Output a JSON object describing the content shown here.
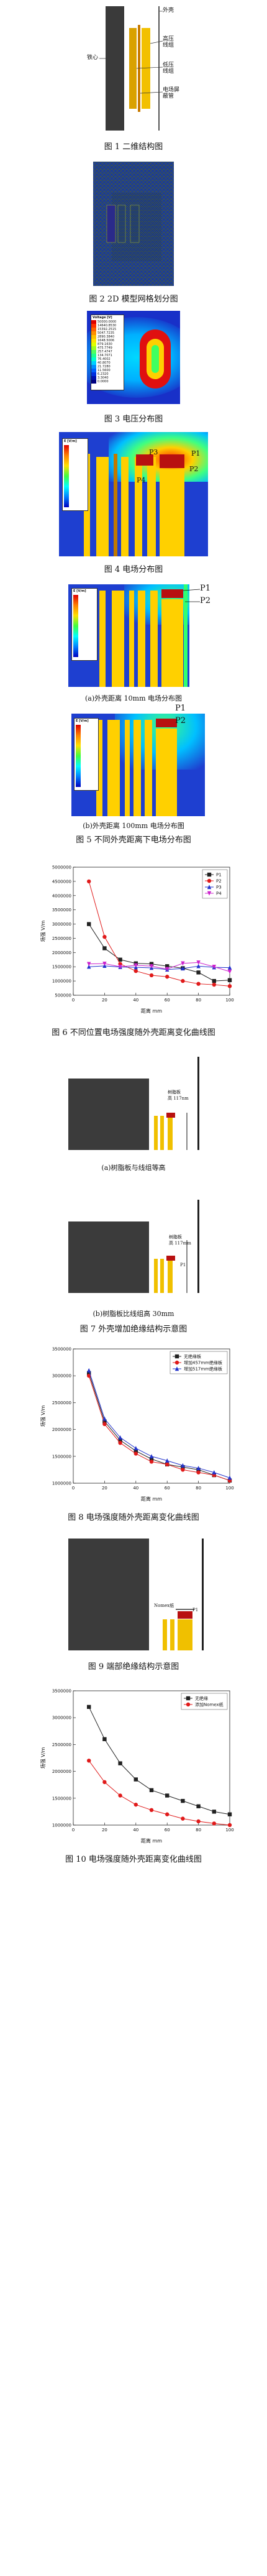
{
  "fig1": {
    "caption": "图 1  二维结构图",
    "labels": {
      "shell": "外壳",
      "core": "铁心",
      "hv_winding": "高压\n线组",
      "lv_winding": "低压\n线组",
      "insulation": "电场屏\n蔽管"
    }
  },
  "fig2": {
    "caption": "图 2  2D 模型网格划分图"
  },
  "fig3": {
    "caption": "图 3  电压分布图",
    "legend_title": "Voltage [V]",
    "legend_values": [
      "50000.0000",
      "14640.8530",
      "15392.2515",
      "5047.7235",
      "2890.3840",
      "1648.5006",
      "879.1630",
      "475.7749",
      "257.4747",
      "134.7071",
      "76.4002",
      "40.8070",
      "21.7280",
      "11.5600",
      "6.2320",
      "3.3040",
      "0.0000"
    ]
  },
  "fig4": {
    "caption": "图 4  电场分布图",
    "legend_title": "E [V/m]",
    "points": [
      "P1",
      "P2",
      "P3",
      "P4"
    ]
  },
  "fig5": {
    "caption": "图 5  不同外壳距离下电场分布图",
    "sub_a": "(a)外壳距离 10mm 电场分布图",
    "sub_b": "(b)外壳距离 100mm 电场分布图",
    "legend_title": "E [V/m]",
    "points": [
      "P1",
      "P2"
    ]
  },
  "fig6": {
    "caption": "图 6  不同位置电场强度随外壳距离变化曲线图",
    "chart_data": {
      "type": "line",
      "xlabel": "距离 mm",
      "ylabel": "场强 V/m",
      "x": [
        10,
        20,
        30,
        40,
        50,
        60,
        70,
        80,
        90,
        100
      ],
      "xlim": [
        0,
        100
      ],
      "ylim": [
        500000,
        5000000
      ],
      "xticks": [
        0,
        20,
        40,
        60,
        80,
        100
      ],
      "yticks": [
        "500000",
        "1000000",
        "1500000",
        "2000000",
        "2500000",
        "3000000",
        "3500000",
        "4000000",
        "4500000",
        "5000000"
      ],
      "legend_position": "top-right",
      "series": [
        {
          "name": "P1",
          "color": "#222222",
          "marker": "square",
          "values": [
            3000000,
            2150000,
            1750000,
            1620000,
            1600000,
            1520000,
            1450000,
            1300000,
            1000000,
            1030000
          ]
        },
        {
          "name": "P2",
          "color": "#e01a1a",
          "marker": "circle",
          "values": [
            4500000,
            2550000,
            1600000,
            1350000,
            1200000,
            1150000,
            1000000,
            900000,
            870000,
            820000
          ]
        },
        {
          "name": "P3",
          "color": "#2233cc",
          "marker": "triangle",
          "values": [
            1500000,
            1530000,
            1490000,
            1480000,
            1460000,
            1400000,
            1440000,
            1520000,
            1480000,
            1470000
          ]
        },
        {
          "name": "P4",
          "color": "#cc22cc",
          "marker": "triangle-down",
          "values": [
            1600000,
            1610000,
            1500000,
            1550000,
            1520000,
            1420000,
            1620000,
            1650000,
            1500000,
            1330000
          ]
        }
      ]
    }
  },
  "fig7": {
    "caption": "图 7  外壳增加绝缘结构示意图",
    "sub_a": "(a)树脂板与线组等高",
    "sub_b": "(b)树脂板比线组高 30mm",
    "label_a": "树脂板\n高 117nm",
    "label_b": "树脂板\n高 117mm",
    "point": "P1"
  },
  "fig8": {
    "caption": "图 8  电场强度随外壳距离变化曲线图",
    "chart_data": {
      "type": "line",
      "xlabel": "距离 mm",
      "ylabel": "场强 V/m",
      "x": [
        10,
        20,
        30,
        40,
        50,
        60,
        70,
        80,
        90,
        100
      ],
      "xlim": [
        0,
        100
      ],
      "ylim": [
        1000000,
        3500000
      ],
      "xticks": [
        0,
        20,
        40,
        60,
        80,
        100
      ],
      "yticks": [
        "1000000",
        "1500000",
        "2000000",
        "2500000",
        "3000000",
        "3500000"
      ],
      "legend_position": "top-right",
      "series": [
        {
          "name": "无绝缘板",
          "color": "#222222",
          "marker": "square",
          "values": [
            3050000,
            2150000,
            1800000,
            1600000,
            1450000,
            1350000,
            1300000,
            1250000,
            1150000,
            1050000
          ]
        },
        {
          "name": "增加457mm绝缘板",
          "color": "#e01a1a",
          "marker": "circle",
          "values": [
            3000000,
            2100000,
            1750000,
            1550000,
            1400000,
            1350000,
            1250000,
            1200000,
            1150000,
            1050000
          ]
        },
        {
          "name": "增加517mm绝缘板",
          "color": "#2233cc",
          "marker": "triangle",
          "values": [
            3100000,
            2200000,
            1850000,
            1650000,
            1500000,
            1420000,
            1330000,
            1280000,
            1200000,
            1100000
          ]
        }
      ]
    }
  },
  "fig9": {
    "caption": "图 9  端部绝缘结构示意图",
    "label": "Nomex纸",
    "point": "P1"
  },
  "fig10": {
    "caption": "图 10  电场强度随外壳距离变化曲线图",
    "chart_data": {
      "type": "line",
      "xlabel": "距离 mm",
      "ylabel": "场强 V/m",
      "x": [
        10,
        20,
        30,
        40,
        50,
        60,
        70,
        80,
        90,
        100
      ],
      "xlim": [
        0,
        100
      ],
      "ylim": [
        1000000,
        3500000
      ],
      "xticks": [
        0,
        20,
        40,
        60,
        80,
        100
      ],
      "yticks": [
        "1000000",
        "1500000",
        "2000000",
        "2500000",
        "3000000",
        "3500000"
      ],
      "legend_position": "top-right",
      "series": [
        {
          "name": "无绝缘",
          "color": "#222222",
          "marker": "square",
          "values": [
            3200000,
            2600000,
            2150000,
            1850000,
            1650000,
            1550000,
            1450000,
            1350000,
            1250000,
            1200000
          ]
        },
        {
          "name": "添加Nomex纸",
          "color": "#e01a1a",
          "marker": "circle",
          "values": [
            2200000,
            1800000,
            1550000,
            1380000,
            1280000,
            1200000,
            1120000,
            1070000,
            1030000,
            1000000
          ]
        }
      ]
    }
  }
}
